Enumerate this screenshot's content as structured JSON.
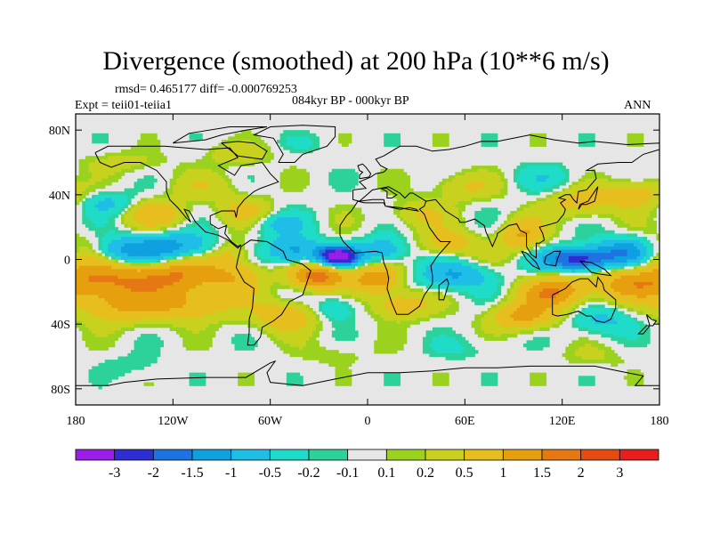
{
  "title": "Divergence (smoothed) at 200 hPa (10**6 m/s)",
  "stats": "rmsd= 0.465177 diff= -0.000769253",
  "experiment": "Expt = teii01-teiia1",
  "period": "084kyr BP - 000kyr BP",
  "season": "ANN",
  "map": {
    "lon_range": [
      -180,
      180
    ],
    "lat_range": [
      -90,
      90
    ],
    "lat_ticks": [
      {
        "v": 80,
        "t": "80N"
      },
      {
        "v": 40,
        "t": "40N"
      },
      {
        "v": 0,
        "t": "0"
      },
      {
        "v": -40,
        "t": "40S"
      },
      {
        "v": -80,
        "t": "80S"
      }
    ],
    "lon_ticks": [
      {
        "v": -180,
        "t": "180"
      },
      {
        "v": -120,
        "t": "120W"
      },
      {
        "v": -60,
        "t": "60W"
      },
      {
        "v": 0,
        "t": "0"
      },
      {
        "v": 60,
        "t": "60E"
      },
      {
        "v": 120,
        "t": "120E"
      },
      {
        "v": 180,
        "t": "180"
      }
    ],
    "background_color": "#e6e6e6",
    "coast_color": "#000000"
  },
  "colorbar": {
    "colors": [
      "#9b1ee6",
      "#2d2dd2",
      "#1e73e1",
      "#0fa0e1",
      "#1ebee6",
      "#1edcc8",
      "#2dd29b",
      "#e6e6e6",
      "#9bd21e",
      "#c8d21e",
      "#e6be1e",
      "#e6a00f",
      "#e67814",
      "#e64b14",
      "#e61e1e"
    ],
    "labels": [
      "-3",
      "-2",
      "-1.5",
      "-1",
      "-0.5",
      "-0.2",
      "-0.1",
      "0.1",
      "0.2",
      "0.5",
      "1",
      "1.5",
      "2",
      "3"
    ]
  },
  "field_blobs": [
    {
      "lon": -178,
      "lat": 5,
      "a": 0.9,
      "sx": 12,
      "sy": 7
    },
    {
      "lon": -150,
      "lat": 5,
      "a": -1.2,
      "sx": 20,
      "sy": 6
    },
    {
      "lon": -115,
      "lat": 8,
      "a": -1.0,
      "sx": 18,
      "sy": 6
    },
    {
      "lon": -85,
      "lat": 5,
      "a": 0.6,
      "sx": 10,
      "sy": 6
    },
    {
      "lon": -165,
      "lat": -12,
      "a": 1.2,
      "sx": 22,
      "sy": 8
    },
    {
      "lon": -120,
      "lat": -10,
      "a": 1.4,
      "sx": 20,
      "sy": 8
    },
    {
      "lon": -80,
      "lat": -10,
      "a": 0.8,
      "sx": 12,
      "sy": 8
    },
    {
      "lon": -155,
      "lat": -28,
      "a": 1.0,
      "sx": 18,
      "sy": 8
    },
    {
      "lon": -110,
      "lat": -28,
      "a": 1.0,
      "sx": 18,
      "sy": 7
    },
    {
      "lon": -160,
      "lat": 35,
      "a": -0.6,
      "sx": 12,
      "sy": 5
    },
    {
      "lon": -130,
      "lat": 28,
      "a": 0.8,
      "sx": 14,
      "sy": 6
    },
    {
      "lon": -75,
      "lat": 30,
      "a": 0.6,
      "sx": 12,
      "sy": 6
    },
    {
      "lon": -55,
      "lat": 22,
      "a": -0.6,
      "sx": 12,
      "sy": 5
    },
    {
      "lon": -100,
      "lat": 45,
      "a": 0.4,
      "sx": 15,
      "sy": 6
    },
    {
      "lon": -18,
      "lat": 2,
      "a": -3.6,
      "sx": 8,
      "sy": 4
    },
    {
      "lon": -45,
      "lat": 5,
      "a": -1.3,
      "sx": 12,
      "sy": 6
    },
    {
      "lon": 10,
      "lat": 5,
      "a": -1.0,
      "sx": 10,
      "sy": 6
    },
    {
      "lon": -30,
      "lat": -10,
      "a": 1.8,
      "sx": 12,
      "sy": 6
    },
    {
      "lon": 5,
      "lat": -12,
      "a": 1.4,
      "sx": 10,
      "sy": 6
    },
    {
      "lon": -50,
      "lat": -35,
      "a": 0.9,
      "sx": 14,
      "sy": 7
    },
    {
      "lon": -20,
      "lat": -30,
      "a": -0.6,
      "sx": 10,
      "sy": 6
    },
    {
      "lon": 20,
      "lat": -28,
      "a": 0.9,
      "sx": 12,
      "sy": 6
    },
    {
      "lon": 55,
      "lat": -10,
      "a": -1.0,
      "sx": 16,
      "sy": 6
    },
    {
      "lon": 50,
      "lat": 10,
      "a": 0.8,
      "sx": 12,
      "sy": 6
    },
    {
      "lon": 30,
      "lat": 28,
      "a": 0.5,
      "sx": 14,
      "sy": 6
    },
    {
      "lon": 95,
      "lat": 15,
      "a": 1.0,
      "sx": 10,
      "sy": 7
    },
    {
      "lon": 130,
      "lat": 0,
      "a": -2.4,
      "sx": 14,
      "sy": 5
    },
    {
      "lon": 160,
      "lat": 5,
      "a": -1.3,
      "sx": 14,
      "sy": 6
    },
    {
      "lon": 115,
      "lat": -20,
      "a": 1.5,
      "sx": 14,
      "sy": 7
    },
    {
      "lon": 160,
      "lat": -15,
      "a": 1.0,
      "sx": 16,
      "sy": 7
    },
    {
      "lon": 95,
      "lat": -35,
      "a": 1.1,
      "sx": 14,
      "sy": 6
    },
    {
      "lon": 145,
      "lat": -38,
      "a": -0.6,
      "sx": 14,
      "sy": 6
    },
    {
      "lon": 130,
      "lat": 35,
      "a": 0.7,
      "sx": 14,
      "sy": 7
    },
    {
      "lon": 165,
      "lat": 40,
      "a": 0.8,
      "sx": 14,
      "sy": 6
    },
    {
      "lon": 110,
      "lat": 50,
      "a": -0.4,
      "sx": 14,
      "sy": 6
    },
    {
      "lon": 60,
      "lat": 45,
      "a": 0.5,
      "sx": 15,
      "sy": 6
    },
    {
      "lon": -150,
      "lat": 60,
      "a": 0.3,
      "sx": 18,
      "sy": 5
    },
    {
      "lon": -80,
      "lat": 65,
      "a": 0.4,
      "sx": 14,
      "sy": 5
    },
    {
      "lon": -40,
      "lat": 72,
      "a": -0.2,
      "sx": 10,
      "sy": 4
    },
    {
      "lon": -145,
      "lat": -65,
      "a": -0.2,
      "sx": 14,
      "sy": 5
    },
    {
      "lon": -20,
      "lat": -58,
      "a": 0.2,
      "sx": 16,
      "sy": 5
    },
    {
      "lon": 60,
      "lat": -55,
      "a": -0.2,
      "sx": 16,
      "sy": 5
    },
    {
      "lon": 140,
      "lat": -60,
      "a": 0.2,
      "sx": 16,
      "sy": 5
    }
  ]
}
